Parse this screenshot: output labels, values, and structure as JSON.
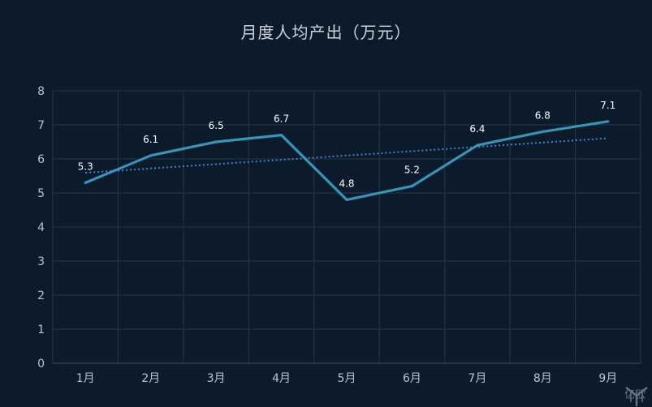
{
  "chart_data": {
    "type": "line",
    "title": "月度人均产出（万元）",
    "categories": [
      "1月",
      "2月",
      "3月",
      "4月",
      "5月",
      "6月",
      "7月",
      "8月",
      "9月"
    ],
    "series": [
      {
        "values": [
          5.3,
          6.1,
          6.5,
          6.7,
          4.8,
          5.2,
          6.4,
          6.8,
          7.1
        ]
      }
    ],
    "trendline": {
      "type": "linear",
      "style": "dotted"
    },
    "ylim": [
      0,
      8
    ],
    "yticks": [
      0,
      1,
      2,
      3,
      4,
      5,
      6,
      7,
      8
    ],
    "grid": true,
    "colors": {
      "line": "#3a93b8",
      "trend": "#4a7fd4",
      "grid": "#24384a",
      "background": "#0b1b2b"
    }
  },
  "watermark": {
    "text": "亿欧"
  }
}
